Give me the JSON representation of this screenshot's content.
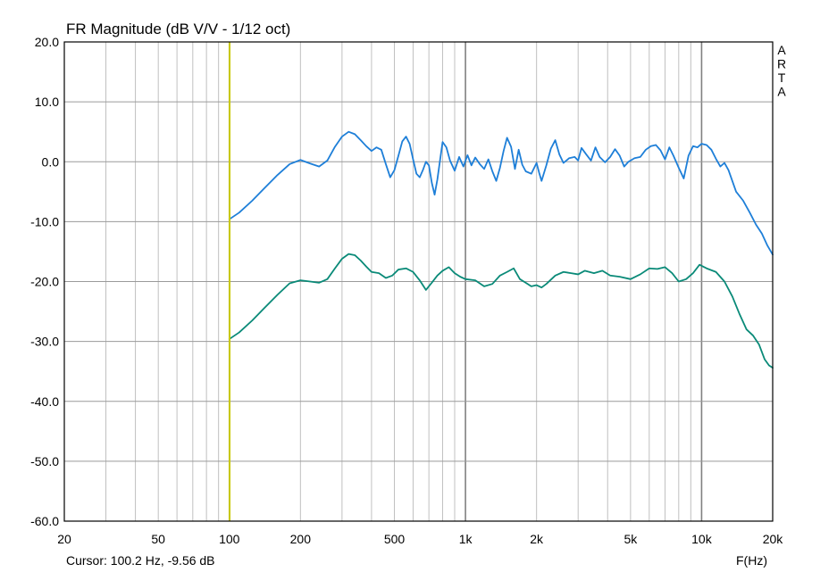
{
  "chart_data": {
    "type": "line",
    "title": "FR Magnitude (dB V/V - 1/12 oct)",
    "xlabel": "F(Hz)",
    "ylabel": "",
    "x_scale": "log",
    "xlim": [
      20,
      20000
    ],
    "ylim": [
      -60,
      20
    ],
    "y_ticks": [
      "20.0",
      "10.0",
      "0.0",
      "-10.0",
      "-20.0",
      "-30.0",
      "-40.0",
      "-50.0",
      "-60.0"
    ],
    "x_ticks": [
      {
        "value": 20,
        "label": "20"
      },
      {
        "value": 50,
        "label": "50"
      },
      {
        "value": 100,
        "label": "100"
      },
      {
        "value": 200,
        "label": "200"
      },
      {
        "value": 500,
        "label": "500"
      },
      {
        "value": 1000,
        "label": "1k"
      },
      {
        "value": 2000,
        "label": "2k"
      },
      {
        "value": 5000,
        "label": "5k"
      },
      {
        "value": 10000,
        "label": "10k"
      },
      {
        "value": 20000,
        "label": "20k"
      }
    ],
    "grid": true,
    "watermark": "ARTA",
    "cursor": {
      "frequency": 100.2,
      "label": "Cursor: 100.2 Hz, -9.56 dB",
      "color": "#c8c800"
    },
    "series": [
      {
        "color": "#1e7fd8",
        "points": [
          [
            100,
            -9.6
          ],
          [
            110,
            -8.5
          ],
          [
            125,
            -6.5
          ],
          [
            140,
            -4.5
          ],
          [
            160,
            -2.2
          ],
          [
            180,
            -0.4
          ],
          [
            200,
            0.3
          ],
          [
            220,
            -0.3
          ],
          [
            240,
            -0.8
          ],
          [
            260,
            0.2
          ],
          [
            280,
            2.5
          ],
          [
            300,
            4.2
          ],
          [
            320,
            5.0
          ],
          [
            340,
            4.6
          ],
          [
            360,
            3.6
          ],
          [
            380,
            2.6
          ],
          [
            400,
            1.8
          ],
          [
            420,
            2.4
          ],
          [
            440,
            2.0
          ],
          [
            460,
            -0.4
          ],
          [
            480,
            -2.6
          ],
          [
            500,
            -1.4
          ],
          [
            520,
            1.0
          ],
          [
            540,
            3.4
          ],
          [
            560,
            4.2
          ],
          [
            580,
            3.0
          ],
          [
            600,
            0.4
          ],
          [
            620,
            -2.0
          ],
          [
            640,
            -2.6
          ],
          [
            660,
            -1.4
          ],
          [
            680,
            0.0
          ],
          [
            700,
            -0.6
          ],
          [
            720,
            -3.5
          ],
          [
            740,
            -5.5
          ],
          [
            760,
            -3.0
          ],
          [
            780,
            0.2
          ],
          [
            800,
            3.3
          ],
          [
            830,
            2.4
          ],
          [
            860,
            0.2
          ],
          [
            900,
            -1.5
          ],
          [
            940,
            0.8
          ],
          [
            980,
            -0.8
          ],
          [
            1020,
            1.1
          ],
          [
            1060,
            -0.6
          ],
          [
            1100,
            0.7
          ],
          [
            1150,
            -0.4
          ],
          [
            1200,
            -1.2
          ],
          [
            1250,
            0.4
          ],
          [
            1300,
            -1.6
          ],
          [
            1350,
            -3.2
          ],
          [
            1400,
            -1.0
          ],
          [
            1450,
            1.8
          ],
          [
            1500,
            4.0
          ],
          [
            1560,
            2.5
          ],
          [
            1620,
            -1.2
          ],
          [
            1680,
            2.0
          ],
          [
            1740,
            -0.5
          ],
          [
            1800,
            -1.6
          ],
          [
            1900,
            -2.0
          ],
          [
            2000,
            -0.2
          ],
          [
            2050,
            -1.8
          ],
          [
            2100,
            -3.2
          ],
          [
            2200,
            -0.6
          ],
          [
            2300,
            2.2
          ],
          [
            2400,
            3.6
          ],
          [
            2500,
            1.2
          ],
          [
            2600,
            -0.2
          ],
          [
            2750,
            0.6
          ],
          [
            2900,
            0.8
          ],
          [
            3000,
            0.2
          ],
          [
            3100,
            2.3
          ],
          [
            3250,
            1.2
          ],
          [
            3400,
            0.2
          ],
          [
            3550,
            2.4
          ],
          [
            3700,
            0.8
          ],
          [
            3900,
            -0.1
          ],
          [
            4100,
            0.8
          ],
          [
            4300,
            2.1
          ],
          [
            4500,
            1.0
          ],
          [
            4700,
            -0.8
          ],
          [
            4900,
            0.0
          ],
          [
            5200,
            0.6
          ],
          [
            5500,
            0.8
          ],
          [
            5800,
            2.0
          ],
          [
            6100,
            2.6
          ],
          [
            6400,
            2.8
          ],
          [
            6700,
            1.9
          ],
          [
            7000,
            0.4
          ],
          [
            7300,
            2.4
          ],
          [
            7600,
            1.0
          ],
          [
            8000,
            -1.0
          ],
          [
            8400,
            -2.8
          ],
          [
            8800,
            1.0
          ],
          [
            9200,
            2.6
          ],
          [
            9600,
            2.4
          ],
          [
            10000,
            3.0
          ],
          [
            10500,
            2.8
          ],
          [
            11000,
            2.0
          ],
          [
            11500,
            0.5
          ],
          [
            12000,
            -0.8
          ],
          [
            12500,
            -0.2
          ],
          [
            13000,
            -1.4
          ],
          [
            14000,
            -5.0
          ],
          [
            15000,
            -6.5
          ],
          [
            16000,
            -8.5
          ],
          [
            17000,
            -10.5
          ],
          [
            18000,
            -12.0
          ],
          [
            19000,
            -14.0
          ],
          [
            20000,
            -15.5
          ]
        ]
      },
      {
        "color": "#0a8a78",
        "points": [
          [
            100,
            -29.6
          ],
          [
            110,
            -28.5
          ],
          [
            125,
            -26.5
          ],
          [
            140,
            -24.5
          ],
          [
            160,
            -22.2
          ],
          [
            180,
            -20.3
          ],
          [
            200,
            -19.8
          ],
          [
            220,
            -20.0
          ],
          [
            240,
            -20.2
          ],
          [
            260,
            -19.6
          ],
          [
            280,
            -17.8
          ],
          [
            300,
            -16.2
          ],
          [
            320,
            -15.4
          ],
          [
            340,
            -15.6
          ],
          [
            360,
            -16.5
          ],
          [
            380,
            -17.5
          ],
          [
            400,
            -18.4
          ],
          [
            430,
            -18.6
          ],
          [
            460,
            -19.4
          ],
          [
            490,
            -19.0
          ],
          [
            520,
            -18.0
          ],
          [
            560,
            -17.8
          ],
          [
            600,
            -18.4
          ],
          [
            640,
            -19.8
          ],
          [
            680,
            -21.4
          ],
          [
            720,
            -20.2
          ],
          [
            760,
            -19.0
          ],
          [
            800,
            -18.2
          ],
          [
            850,
            -17.6
          ],
          [
            900,
            -18.6
          ],
          [
            950,
            -19.2
          ],
          [
            1000,
            -19.6
          ],
          [
            1100,
            -19.8
          ],
          [
            1200,
            -20.8
          ],
          [
            1300,
            -20.4
          ],
          [
            1400,
            -19.0
          ],
          [
            1500,
            -18.4
          ],
          [
            1600,
            -17.8
          ],
          [
            1700,
            -19.6
          ],
          [
            1800,
            -20.2
          ],
          [
            1900,
            -20.8
          ],
          [
            2000,
            -20.6
          ],
          [
            2100,
            -21.0
          ],
          [
            2200,
            -20.4
          ],
          [
            2400,
            -19.0
          ],
          [
            2600,
            -18.4
          ],
          [
            2800,
            -18.6
          ],
          [
            3000,
            -18.8
          ],
          [
            3200,
            -18.2
          ],
          [
            3500,
            -18.6
          ],
          [
            3800,
            -18.2
          ],
          [
            4100,
            -19.0
          ],
          [
            4500,
            -19.2
          ],
          [
            5000,
            -19.6
          ],
          [
            5500,
            -18.8
          ],
          [
            6000,
            -17.8
          ],
          [
            6500,
            -17.9
          ],
          [
            7000,
            -17.6
          ],
          [
            7500,
            -18.6
          ],
          [
            8000,
            -20.0
          ],
          [
            8600,
            -19.6
          ],
          [
            9200,
            -18.6
          ],
          [
            9800,
            -17.2
          ],
          [
            10500,
            -17.8
          ],
          [
            11500,
            -18.4
          ],
          [
            12500,
            -20.0
          ],
          [
            13500,
            -22.5
          ],
          [
            14500,
            -25.5
          ],
          [
            15500,
            -28.0
          ],
          [
            16500,
            -29.0
          ],
          [
            17500,
            -30.5
          ],
          [
            18500,
            -33.0
          ],
          [
            19300,
            -34.0
          ],
          [
            20000,
            -34.4
          ]
        ]
      }
    ]
  }
}
